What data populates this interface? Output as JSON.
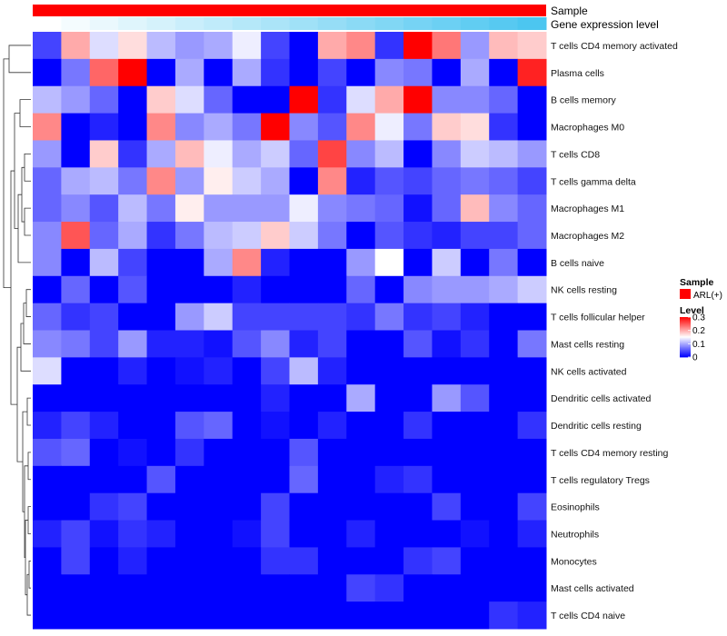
{
  "chart_data": {
    "type": "heatmap",
    "title": "",
    "column_annotations": [
      {
        "name": "Sample",
        "color": "#ff0000"
      },
      {
        "name": "Gene expression level",
        "colors": [
          "#ffffff",
          "#4cc6f0"
        ]
      }
    ],
    "n_columns": 18,
    "rows": [
      "T cells CD4 memory activated",
      "Plasma cells",
      "B cells memory",
      "Macrophages M0",
      "T cells CD8",
      "T cells gamma delta",
      "Macrophages M1",
      "Macrophages M2",
      "B cells naive",
      "NK cells resting",
      "T cells follicular helper",
      "Mast cells resting",
      "NK cells activated",
      "Dendritic cells activated",
      "Dendritic cells resting",
      "T cells CD4 memory resting",
      "T cells regulatory  Tregs",
      "Eosinophils",
      "Neutrophils",
      "Monocytes",
      "Mast cells activated",
      "T cells CD4 naive"
    ],
    "values": [
      [
        0.04,
        0.2,
        0.13,
        0.17,
        0.11,
        0.09,
        0.1,
        0.14,
        0.04,
        0.0,
        0.2,
        0.22,
        0.03,
        0.3,
        0.23,
        0.09,
        0.19,
        0.18
      ],
      [
        0.0,
        0.07,
        0.24,
        0.3,
        0.0,
        0.1,
        0.0,
        0.1,
        0.03,
        0.0,
        0.04,
        0.0,
        0.08,
        0.07,
        0.0,
        0.1,
        0.0,
        0.28
      ],
      [
        0.11,
        0.09,
        0.06,
        0.0,
        0.18,
        0.13,
        0.06,
        0.0,
        0.0,
        0.3,
        0.03,
        0.13,
        0.2,
        0.3,
        0.08,
        0.08,
        0.06,
        0.0
      ],
      [
        0.22,
        0.0,
        0.02,
        0.0,
        0.22,
        0.08,
        0.1,
        0.07,
        0.3,
        0.08,
        0.05,
        0.22,
        0.14,
        0.07,
        0.18,
        0.17,
        0.03,
        0.0
      ],
      [
        0.09,
        0.0,
        0.18,
        0.03,
        0.1,
        0.19,
        0.14,
        0.1,
        0.12,
        0.06,
        0.26,
        0.08,
        0.11,
        0.0,
        0.08,
        0.12,
        0.11,
        0.09
      ],
      [
        0.06,
        0.1,
        0.11,
        0.07,
        0.22,
        0.09,
        0.16,
        0.12,
        0.1,
        0.0,
        0.22,
        0.02,
        0.05,
        0.04,
        0.06,
        0.07,
        0.06,
        0.04
      ],
      [
        0.06,
        0.08,
        0.05,
        0.11,
        0.07,
        0.16,
        0.09,
        0.09,
        0.09,
        0.14,
        0.08,
        0.07,
        0.06,
        0.01,
        0.06,
        0.19,
        0.08,
        0.06
      ],
      [
        0.08,
        0.25,
        0.06,
        0.1,
        0.03,
        0.07,
        0.11,
        0.12,
        0.18,
        0.12,
        0.07,
        0.0,
        0.05,
        0.03,
        0.02,
        0.04,
        0.04,
        0.06
      ],
      [
        0.08,
        0.0,
        0.11,
        0.04,
        0.0,
        0.0,
        0.1,
        0.22,
        0.02,
        0.0,
        0.0,
        0.09,
        0.15,
        0.0,
        0.12,
        0.0,
        0.07,
        0.0
      ],
      [
        0.0,
        0.06,
        0.0,
        0.05,
        0.0,
        0.0,
        0.0,
        0.02,
        0.0,
        0.0,
        0.0,
        0.06,
        0.0,
        0.08,
        0.09,
        0.09,
        0.1,
        0.12
      ],
      [
        0.06,
        0.03,
        0.04,
        0.0,
        0.0,
        0.09,
        0.12,
        0.04,
        0.04,
        0.04,
        0.04,
        0.03,
        0.07,
        0.03,
        0.04,
        0.02,
        0.0,
        0.0
      ],
      [
        0.08,
        0.07,
        0.04,
        0.09,
        0.02,
        0.02,
        0.01,
        0.05,
        0.08,
        0.02,
        0.04,
        0.0,
        0.0,
        0.05,
        0.01,
        0.03,
        0.0,
        0.07
      ],
      [
        0.13,
        0.0,
        0.0,
        0.02,
        0.0,
        0.01,
        0.02,
        0.0,
        0.04,
        0.11,
        0.02,
        0.0,
        0.0,
        0.0,
        0.0,
        0.0,
        0.0,
        0.0
      ],
      [
        0.0,
        0.0,
        0.0,
        0.0,
        0.0,
        0.0,
        0.0,
        0.0,
        0.02,
        0.0,
        0.0,
        0.1,
        0.0,
        0.0,
        0.09,
        0.05,
        0.0,
        0.0
      ],
      [
        0.02,
        0.04,
        0.02,
        0.0,
        0.0,
        0.05,
        0.06,
        0.0,
        0.01,
        0.0,
        0.02,
        0.0,
        0.0,
        0.03,
        0.0,
        0.0,
        0.0,
        0.03
      ],
      [
        0.05,
        0.06,
        0.0,
        0.01,
        0.0,
        0.03,
        0.0,
        0.0,
        0.0,
        0.05,
        0.0,
        0.0,
        0.0,
        0.0,
        0.0,
        0.0,
        0.0,
        0.0
      ],
      [
        0.0,
        0.0,
        0.0,
        0.0,
        0.05,
        0.0,
        0.0,
        0.0,
        0.0,
        0.06,
        0.0,
        0.0,
        0.02,
        0.03,
        0.0,
        0.0,
        0.0,
        0.0
      ],
      [
        0.0,
        0.0,
        0.03,
        0.04,
        0.0,
        0.0,
        0.0,
        0.0,
        0.04,
        0.0,
        0.0,
        0.0,
        0.0,
        0.0,
        0.04,
        0.0,
        0.0,
        0.04
      ],
      [
        0.02,
        0.04,
        0.01,
        0.03,
        0.02,
        0.0,
        0.0,
        0.01,
        0.04,
        0.0,
        0.0,
        0.02,
        0.0,
        0.0,
        0.0,
        0.01,
        0.0,
        0.02
      ],
      [
        0.0,
        0.04,
        0.0,
        0.02,
        0.0,
        0.0,
        0.0,
        0.0,
        0.03,
        0.03,
        0.0,
        0.0,
        0.0,
        0.03,
        0.04,
        0.0,
        0.0,
        0.0
      ],
      [
        0.0,
        0.0,
        0.0,
        0.0,
        0.0,
        0.0,
        0.0,
        0.0,
        0.0,
        0.0,
        0.0,
        0.04,
        0.03,
        0.0,
        0.0,
        0.0,
        0.0,
        0.0
      ],
      [
        0.0,
        0.0,
        0.0,
        0.0,
        0.0,
        0.0,
        0.0,
        0.0,
        0.0,
        0.0,
        0.0,
        0.0,
        0.0,
        0.0,
        0.0,
        0.0,
        0.03,
        0.02
      ]
    ],
    "color_scale": {
      "min": 0,
      "mid": 0.15,
      "max": 0.3,
      "low_color": "#0000ff",
      "mid_color": "#ffffff",
      "high_color": "#ff0000"
    },
    "legend": {
      "sample": {
        "title": "Sample",
        "items": [
          {
            "label": "ARL(+)",
            "color": "#ff0000"
          }
        ]
      },
      "level": {
        "title": "Level",
        "ticks": [
          {
            "value": 0.3,
            "label": "0.3"
          },
          {
            "value": 0.2,
            "label": "0.2"
          },
          {
            "value": 0.1,
            "label": "0.1"
          },
          {
            "value": 0,
            "label": "0"
          }
        ]
      }
    },
    "row_dendrogram": true
  }
}
